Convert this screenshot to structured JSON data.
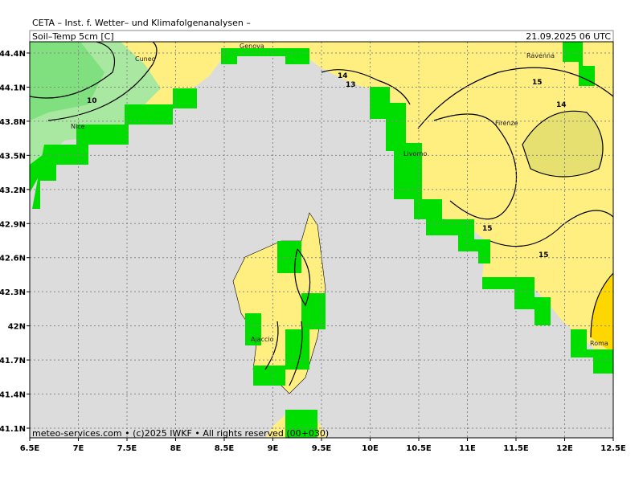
{
  "header": {
    "title": "CETA – Inst. f. Wetter– und Klimafolgenanalysen –",
    "field": "Soil–Temp 5cm [C]",
    "time": "21.09.2025 06 UTC"
  },
  "x_ticks": [
    "6.5E",
    "7E",
    "7.5E",
    "8E",
    "8.5E",
    "9E",
    "9.5E",
    "10E",
    "10.5E",
    "11E",
    "11.5E",
    "12E",
    "12.5E"
  ],
  "y_ticks": [
    "44.4N",
    "44.1N",
    "43.8N",
    "43.5N",
    "43.2N",
    "42.9N",
    "42.6N",
    "42.3N",
    "42N",
    "41.7N",
    "41.4N",
    "41.1N"
  ],
  "places": [
    "Cuneo",
    "Genova",
    "Nice",
    "Livorno",
    "Firenze",
    "Ravenna",
    "Ajaccio",
    "Roma"
  ],
  "contour_labels": [
    "10",
    "14",
    "13",
    "15",
    "14",
    "15",
    "15"
  ],
  "footer": "meteo-services.com • (c)2025 IWKF • All rights reserved (00+030)"
}
